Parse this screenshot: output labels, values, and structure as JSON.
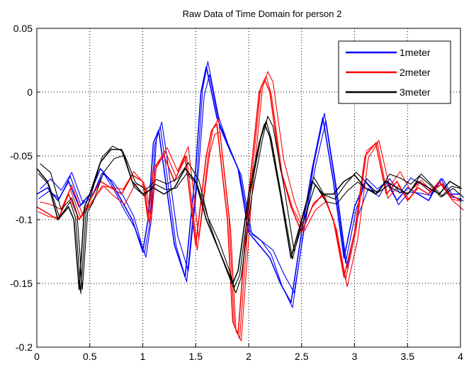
{
  "chart_data": {
    "type": "line",
    "title": "Raw Data of Time Domain for person 2",
    "xlabel": "",
    "ylabel": "",
    "xlim": [
      0,
      4
    ],
    "ylim": [
      -0.2,
      0.05
    ],
    "grid": true,
    "legend_position": "top-right",
    "xticks": [
      0,
      0.5,
      1,
      1.5,
      2,
      2.5,
      3,
      3.5,
      4
    ],
    "xtick_labels": [
      "0",
      "0.5",
      "1",
      "1.5",
      "2",
      "2.5",
      "3",
      "3.5",
      "4"
    ],
    "yticks": [
      0.05,
      0,
      -0.05,
      -0.1,
      -0.15,
      -0.2
    ],
    "ytick_labels": [
      "0.05",
      "0",
      "-0.05",
      "-0.1",
      "-0.15",
      "-0.2"
    ],
    "series": [
      {
        "name": "1meter",
        "color": "#0000ff",
        "x": [
          0,
          0.1,
          0.2,
          0.3,
          0.4,
          0.5,
          0.6,
          0.7,
          0.8,
          0.9,
          1.0,
          1.05,
          1.1,
          1.15,
          1.2,
          1.3,
          1.4,
          1.5,
          1.55,
          1.6,
          1.7,
          1.8,
          1.9,
          2.0,
          2.1,
          2.2,
          2.3,
          2.4,
          2.5,
          2.6,
          2.7,
          2.8,
          2.9,
          3.0,
          3.1,
          3.2,
          3.3,
          3.4,
          3.5,
          3.6,
          3.7,
          3.8,
          3.9,
          4.0
        ],
        "y": [
          -0.08,
          -0.075,
          -0.085,
          -0.07,
          -0.09,
          -0.08,
          -0.06,
          -0.07,
          -0.085,
          -0.1,
          -0.125,
          -0.1,
          -0.04,
          -0.03,
          -0.06,
          -0.12,
          -0.145,
          -0.06,
          0.0,
          0.02,
          -0.02,
          -0.04,
          -0.06,
          -0.11,
          -0.12,
          -0.13,
          -0.15,
          -0.165,
          -0.11,
          -0.06,
          -0.02,
          -0.07,
          -0.13,
          -0.09,
          -0.07,
          -0.08,
          -0.07,
          -0.085,
          -0.075,
          -0.08,
          -0.085,
          -0.07,
          -0.08,
          -0.08
        ],
        "offsets": [
          0,
          0.015,
          0.03
        ]
      },
      {
        "name": "2meter",
        "color": "#ff0000",
        "x": [
          0,
          0.1,
          0.2,
          0.3,
          0.4,
          0.5,
          0.6,
          0.7,
          0.8,
          0.9,
          1.0,
          1.05,
          1.1,
          1.2,
          1.3,
          1.4,
          1.5,
          1.6,
          1.65,
          1.7,
          1.8,
          1.85,
          1.9,
          2.0,
          2.1,
          2.15,
          2.2,
          2.3,
          2.4,
          2.5,
          2.6,
          2.7,
          2.8,
          2.9,
          3.0,
          3.1,
          3.2,
          3.3,
          3.4,
          3.5,
          3.6,
          3.7,
          3.8,
          3.9,
          4.0
        ],
        "y": [
          -0.09,
          -0.095,
          -0.1,
          -0.08,
          -0.1,
          -0.085,
          -0.07,
          -0.075,
          -0.08,
          -0.065,
          -0.07,
          -0.1,
          -0.06,
          -0.05,
          -0.07,
          -0.05,
          -0.12,
          -0.05,
          -0.03,
          -0.025,
          -0.1,
          -0.18,
          -0.19,
          -0.08,
          0.0,
          0.01,
          0.0,
          -0.06,
          -0.09,
          -0.11,
          -0.09,
          -0.08,
          -0.1,
          -0.145,
          -0.11,
          -0.05,
          -0.04,
          -0.08,
          -0.07,
          -0.085,
          -0.075,
          -0.08,
          -0.07,
          -0.08,
          -0.085
        ],
        "offsets": [
          0,
          0.015,
          0.03
        ]
      },
      {
        "name": "3meter",
        "color": "#000000",
        "x": [
          0,
          0.1,
          0.2,
          0.3,
          0.35,
          0.4,
          0.45,
          0.5,
          0.6,
          0.7,
          0.8,
          0.9,
          1.0,
          1.1,
          1.2,
          1.3,
          1.4,
          1.5,
          1.6,
          1.7,
          1.8,
          1.85,
          1.9,
          2.0,
          2.1,
          2.15,
          2.2,
          2.3,
          2.4,
          2.5,
          2.6,
          2.7,
          2.8,
          2.9,
          3.0,
          3.1,
          3.2,
          3.3,
          3.4,
          3.5,
          3.6,
          3.7,
          3.8,
          3.9,
          4.0
        ],
        "y": [
          -0.06,
          -0.07,
          -0.1,
          -0.09,
          -0.1,
          -0.155,
          -0.09,
          -0.08,
          -0.055,
          -0.045,
          -0.045,
          -0.07,
          -0.08,
          -0.075,
          -0.08,
          -0.075,
          -0.06,
          -0.07,
          -0.1,
          -0.12,
          -0.14,
          -0.15,
          -0.14,
          -0.08,
          -0.04,
          -0.025,
          -0.035,
          -0.08,
          -0.13,
          -0.1,
          -0.07,
          -0.08,
          -0.08,
          -0.07,
          -0.065,
          -0.075,
          -0.08,
          -0.07,
          -0.075,
          -0.08,
          -0.07,
          -0.075,
          -0.08,
          -0.07,
          -0.075
        ],
        "offsets": [
          0,
          0.015,
          0.03
        ]
      }
    ]
  }
}
